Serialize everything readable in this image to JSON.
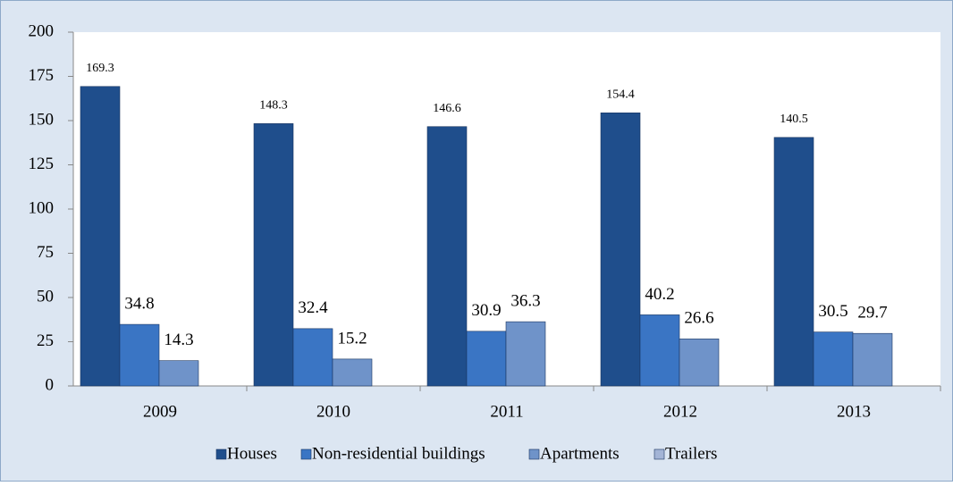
{
  "chart_data": {
    "type": "bar",
    "categories": [
      "2009",
      "2010",
      "2011",
      "2012",
      "2013"
    ],
    "series": [
      {
        "name": "Houses",
        "color": "#1f4e8c",
        "values": [
          169.3,
          148.3,
          146.6,
          154.4,
          140.5
        ]
      },
      {
        "name": "Non-residential buildings",
        "color": "#3a75c4",
        "values": [
          34.8,
          32.4,
          30.9,
          40.2,
          30.5
        ]
      },
      {
        "name": "Apartments",
        "color": "#6f93c9",
        "values": [
          14.3,
          15.2,
          36.3,
          26.6,
          29.7
        ]
      },
      {
        "name": "Trailers",
        "color": "#a3b4d6",
        "values": [
          null,
          null,
          null,
          null,
          null
        ]
      }
    ],
    "ylim": [
      0,
      200
    ],
    "yticks": [
      0,
      25,
      50,
      75,
      100,
      125,
      150,
      175,
      200
    ],
    "grid": false,
    "legend": "bottom"
  }
}
